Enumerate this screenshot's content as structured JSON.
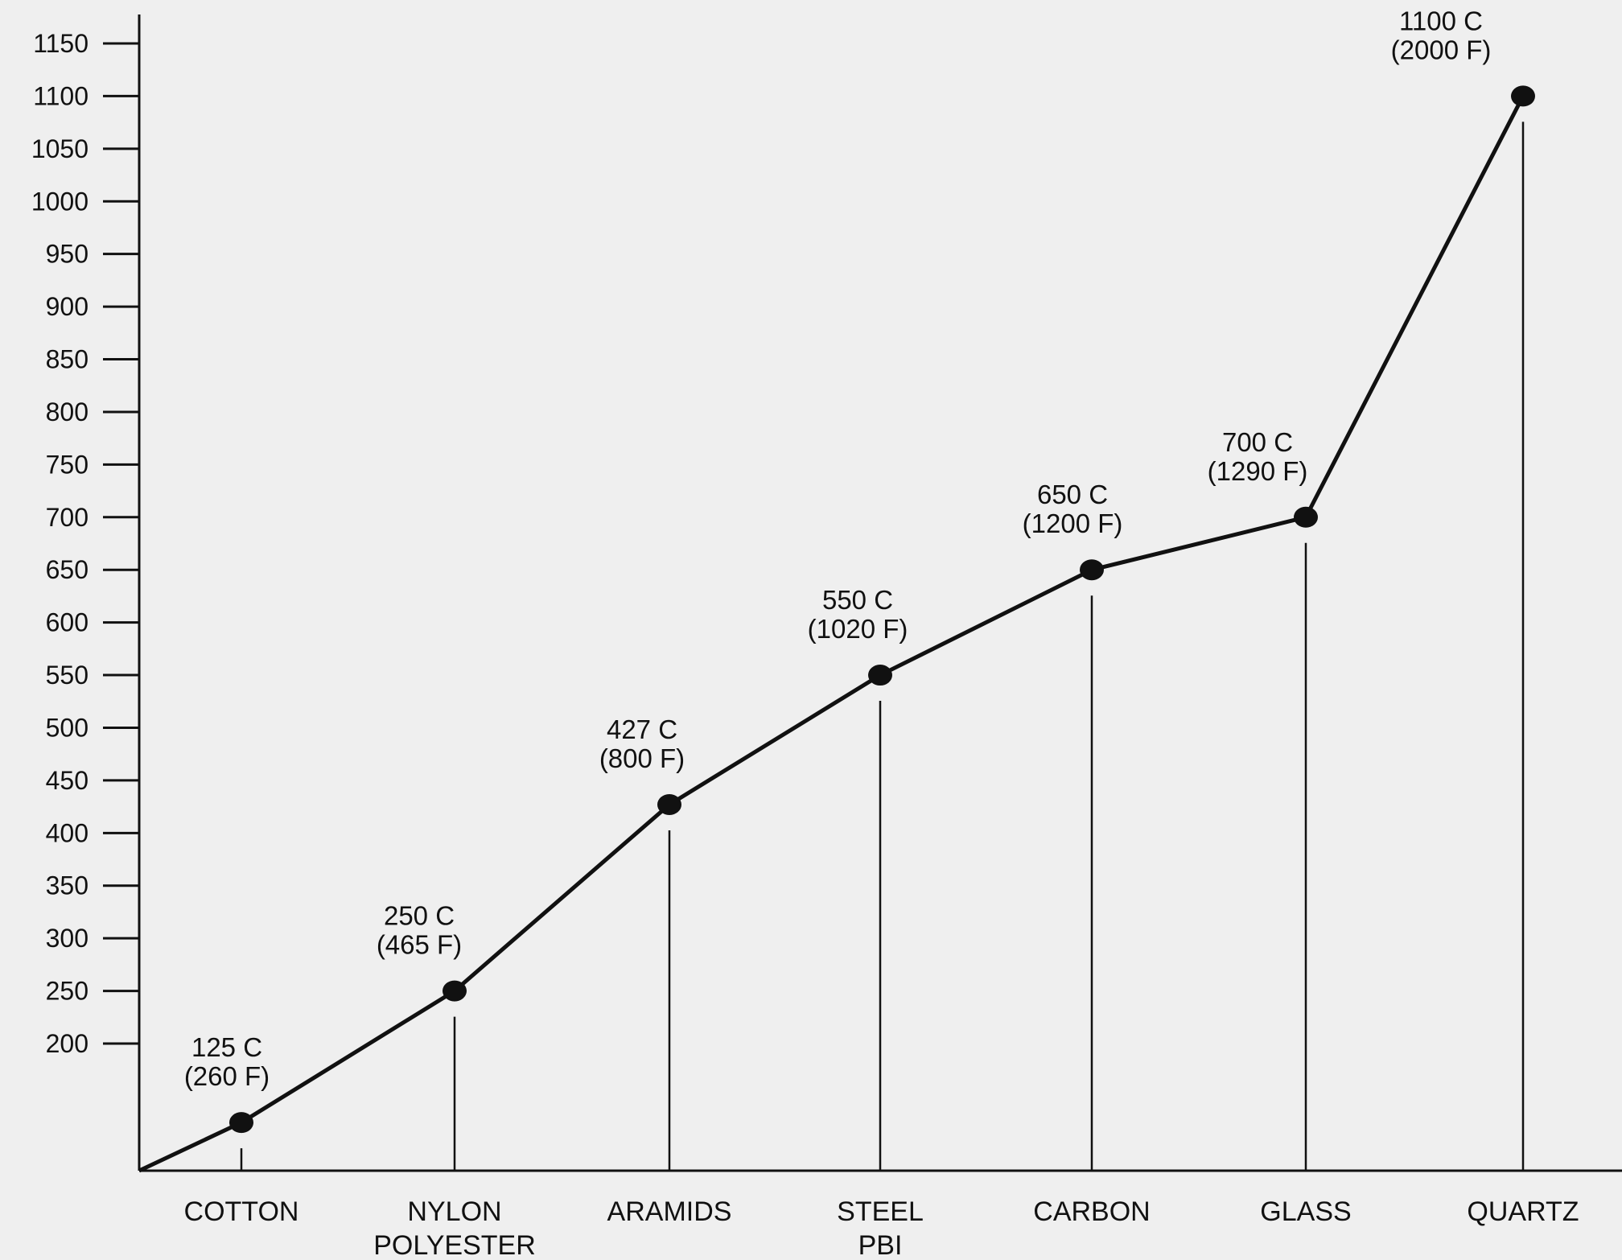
{
  "chart_data": {
    "type": "line",
    "categories": [
      [
        "COTTON"
      ],
      [
        "NYLON",
        "POLYESTER"
      ],
      [
        "ARAMIDS"
      ],
      [
        "STEEL",
        "PBI"
      ],
      [
        "CARBON"
      ],
      [
        "GLASS"
      ],
      [
        "QUARTZ"
      ]
    ],
    "values": [
      125,
      250,
      427,
      550,
      650,
      700,
      1100
    ],
    "data_labels": [
      [
        "125 C",
        "(260 F)"
      ],
      [
        "250 C",
        "(465 F)"
      ],
      [
        "427 C",
        "(800 F)"
      ],
      [
        "550 C",
        "(1020 F)"
      ],
      [
        "650 C",
        "(1200 F)"
      ],
      [
        "700 C",
        "(1290 F)"
      ],
      [
        "1100 C",
        "(2000 F)"
      ]
    ],
    "y_ticks": [
      200,
      250,
      300,
      350,
      400,
      450,
      500,
      550,
      600,
      650,
      700,
      750,
      800,
      850,
      900,
      950,
      1000,
      1050,
      1100,
      1150
    ],
    "title": "",
    "xlabel": "",
    "ylabel": "",
    "grid": false,
    "legend": "none",
    "line_color": "#111111",
    "background_color": "#efefef"
  }
}
